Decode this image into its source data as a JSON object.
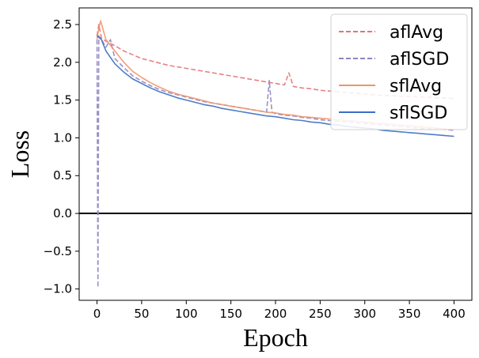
{
  "chart_data": {
    "type": "line",
    "title": "",
    "xlabel": "Epoch",
    "ylabel": "Loss",
    "xlim": [
      -20,
      420
    ],
    "ylim": [
      -1.15,
      2.72
    ],
    "xticks": [
      0,
      50,
      100,
      150,
      200,
      250,
      300,
      350,
      400
    ],
    "xtick_labels": [
      "0",
      "50",
      "100",
      "150",
      "200",
      "250",
      "300",
      "350",
      "400"
    ],
    "yticks": [
      -1.0,
      -0.5,
      0.0,
      0.5,
      1.0,
      1.5,
      2.0,
      2.5
    ],
    "ytick_labels": [
      "−1.0",
      "−0.5",
      "0.0",
      "0.5",
      "1.0",
      "1.5",
      "2.0",
      "2.5"
    ],
    "hline": {
      "y": 0.0,
      "color": "#000000"
    },
    "legend_position": "top-right",
    "series": [
      {
        "name": "aflAvg",
        "color": "#e57373",
        "style": "dashed",
        "x": [
          0,
          2,
          5,
          10,
          20,
          30,
          40,
          50,
          60,
          70,
          80,
          90,
          100,
          110,
          120,
          130,
          140,
          150,
          160,
          170,
          180,
          190,
          200,
          210,
          215,
          220,
          230,
          240,
          250,
          260,
          270,
          280,
          290,
          300,
          310,
          320,
          330,
          340,
          350,
          360,
          370,
          380,
          390,
          400
        ],
        "values": [
          2.35,
          2.5,
          2.32,
          2.28,
          2.22,
          2.15,
          2.1,
          2.05,
          2.02,
          1.99,
          1.96,
          1.94,
          1.92,
          1.9,
          1.88,
          1.86,
          1.84,
          1.82,
          1.8,
          1.78,
          1.76,
          1.74,
          1.72,
          1.7,
          1.86,
          1.68,
          1.66,
          1.65,
          1.63,
          1.62,
          1.61,
          1.6,
          1.59,
          1.58,
          1.57,
          1.56,
          1.56,
          1.55,
          1.55,
          1.54,
          1.54,
          1.53,
          1.53,
          1.52
        ]
      },
      {
        "name": "aflSGD",
        "color": "#8e85c2",
        "style": "dashed",
        "x": [
          0,
          1,
          2,
          5,
          10,
          15,
          20,
          30,
          40,
          50,
          60,
          70,
          80,
          90,
          100,
          110,
          120,
          130,
          140,
          150,
          160,
          170,
          180,
          190,
          193,
          196,
          200,
          210,
          220,
          230,
          240,
          250,
          260,
          270,
          280,
          290,
          300,
          310,
          320,
          330,
          340,
          350,
          360,
          370,
          380,
          390,
          400
        ],
        "values": [
          2.3,
          -0.98,
          2.35,
          2.3,
          2.2,
          2.3,
          2.05,
          1.93,
          1.82,
          1.75,
          1.69,
          1.64,
          1.6,
          1.57,
          1.54,
          1.51,
          1.48,
          1.46,
          1.44,
          1.42,
          1.4,
          1.38,
          1.36,
          1.34,
          1.76,
          1.34,
          1.32,
          1.3,
          1.29,
          1.27,
          1.26,
          1.24,
          1.23,
          1.22,
          1.21,
          1.2,
          1.19,
          1.18,
          1.17,
          1.16,
          1.15,
          1.14,
          1.13,
          1.12,
          1.12,
          1.11,
          1.1
        ]
      },
      {
        "name": "sflAvg",
        "color": "#f0956b",
        "style": "solid",
        "x": [
          0,
          2,
          4,
          10,
          20,
          30,
          40,
          50,
          60,
          70,
          80,
          90,
          100,
          110,
          120,
          130,
          140,
          150,
          160,
          170,
          180,
          190,
          200,
          210,
          220,
          230,
          240,
          250,
          260,
          270,
          280,
          290,
          300,
          310,
          320,
          330,
          340,
          350,
          360,
          370,
          380,
          390,
          400
        ],
        "values": [
          2.3,
          2.45,
          2.55,
          2.3,
          2.15,
          2.0,
          1.88,
          1.8,
          1.73,
          1.67,
          1.62,
          1.58,
          1.55,
          1.52,
          1.49,
          1.46,
          1.44,
          1.42,
          1.4,
          1.38,
          1.36,
          1.34,
          1.33,
          1.31,
          1.3,
          1.28,
          1.27,
          1.26,
          1.25,
          1.24,
          1.23,
          1.22,
          1.21,
          1.2,
          1.19,
          1.18,
          1.17,
          1.16,
          1.15,
          1.14,
          1.13,
          1.12,
          1.11
        ]
      },
      {
        "name": "sflSGD",
        "color": "#3b6fc4",
        "style": "solid",
        "x": [
          0,
          5,
          10,
          20,
          30,
          40,
          50,
          60,
          70,
          80,
          90,
          100,
          110,
          120,
          130,
          140,
          150,
          160,
          170,
          180,
          190,
          200,
          210,
          220,
          230,
          240,
          250,
          260,
          270,
          280,
          290,
          300,
          310,
          320,
          330,
          340,
          350,
          360,
          370,
          380,
          390,
          400
        ],
        "values": [
          2.35,
          2.3,
          2.15,
          1.98,
          1.87,
          1.78,
          1.72,
          1.66,
          1.61,
          1.57,
          1.53,
          1.5,
          1.47,
          1.44,
          1.42,
          1.39,
          1.37,
          1.35,
          1.33,
          1.31,
          1.29,
          1.28,
          1.26,
          1.24,
          1.23,
          1.21,
          1.2,
          1.18,
          1.17,
          1.15,
          1.14,
          1.13,
          1.12,
          1.1,
          1.09,
          1.08,
          1.07,
          1.06,
          1.05,
          1.04,
          1.03,
          1.02
        ]
      }
    ]
  }
}
